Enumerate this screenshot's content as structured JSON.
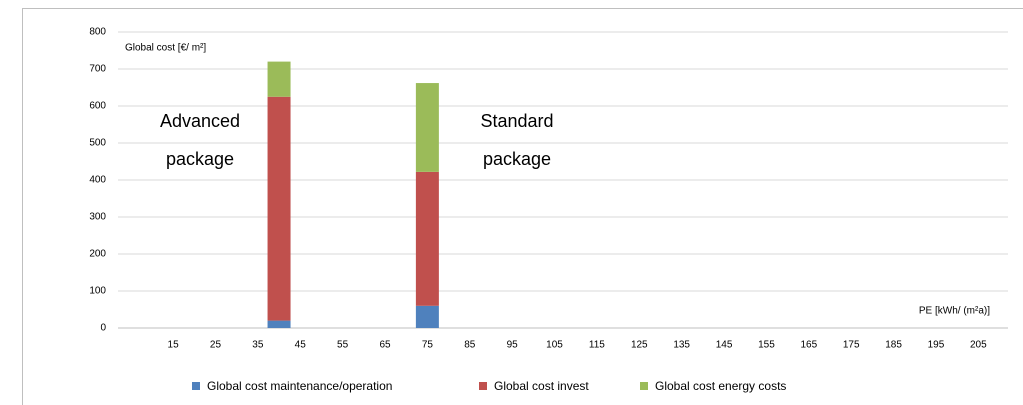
{
  "chart_data": {
    "type": "bar",
    "stacked": true,
    "y_label": "Global cost [€/ m²]",
    "x_label": "PE [kWh/ (m²a)]",
    "annotations": [
      {
        "lines": [
          "Advanced",
          "package"
        ]
      },
      {
        "lines": [
          "Standard",
          "package"
        ]
      }
    ],
    "x": [
      40,
      75
    ],
    "series": [
      {
        "name": "Global cost maintenance/operation",
        "color": "#4f81bd",
        "values": [
          20,
          60
        ]
      },
      {
        "name": "Global cost invest",
        "color": "#c0504d",
        "values": [
          605,
          362
        ]
      },
      {
        "name": "Global cost energy costs",
        "color": "#9bbb59",
        "values": [
          95,
          240
        ]
      }
    ],
    "xlim": [
      2,
      212
    ],
    "xticks": [
      15,
      25,
      35,
      45,
      55,
      65,
      75,
      85,
      95,
      105,
      115,
      125,
      135,
      145,
      155,
      165,
      175,
      185,
      195,
      205
    ],
    "ylim": [
      0,
      800
    ],
    "yticks": [
      0,
      100,
      200,
      300,
      400,
      500,
      600,
      700,
      800
    ],
    "grid": true,
    "legend": "bottom"
  }
}
